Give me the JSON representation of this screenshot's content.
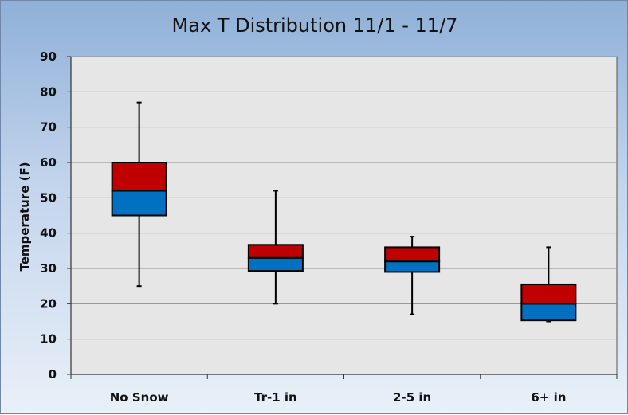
{
  "chart_data": {
    "type": "box",
    "title": "Max T Distribution  11/1 - 11/7",
    "xlabel": "",
    "ylabel": "Temperature (F)",
    "ylim": [
      0,
      90
    ],
    "yticks": [
      0,
      10,
      20,
      30,
      40,
      50,
      60,
      70,
      80,
      90
    ],
    "grid": true,
    "legend": "none",
    "categories": [
      "No Snow",
      "Tr-1 in",
      "2-5 in",
      "6+ in"
    ],
    "boxes": [
      {
        "min": 25,
        "q1": 45,
        "median": 52,
        "q3": 60,
        "max": 77
      },
      {
        "min": 20,
        "q1": 29.3,
        "median": 33,
        "q3": 36.7,
        "max": 52
      },
      {
        "min": 17,
        "q1": 29,
        "median": 32,
        "q3": 36,
        "max": 39
      },
      {
        "min": 15,
        "q1": 15.3,
        "median": 20,
        "q3": 25.5,
        "max": 36
      }
    ],
    "colors": {
      "upper_box": "#c00000",
      "lower_box": "#0070c0",
      "plot_background": "#e6e6e6",
      "gridline": "#8c8c8c"
    }
  }
}
